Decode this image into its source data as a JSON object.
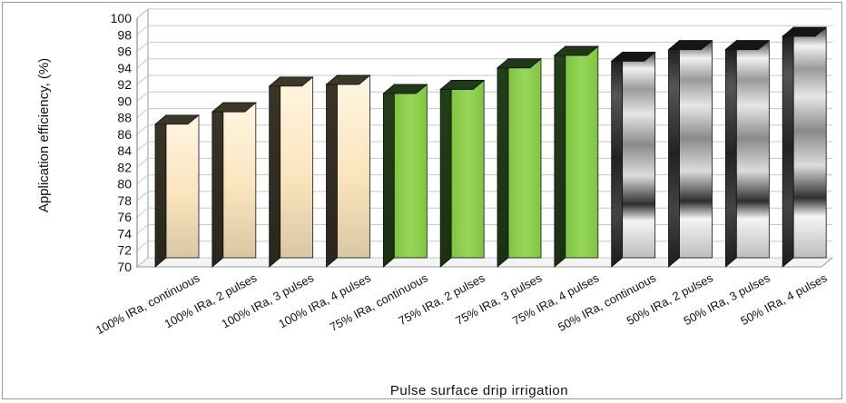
{
  "chart_data": {
    "type": "bar",
    "title": "",
    "xlabel": "Pulse surface drip irrigation",
    "ylabel": "Application efficiency, (%)",
    "ylim": [
      70,
      100
    ],
    "yticks": [
      70,
      72,
      74,
      76,
      78,
      80,
      82,
      84,
      86,
      88,
      90,
      92,
      94,
      96,
      98,
      100
    ],
    "grid": true,
    "categories": [
      "100% IRa, continuous",
      "100% IRa, 2 pulses",
      "100% IRa, 3 pulses",
      "100% IRa, 4 pulses",
      "75% IRa, continuous",
      "75% IRa, 2 pulses",
      "75% IRa, 3 pulses",
      "75% IRa, 4 pulses",
      "50% IRa, continuous",
      "50% IRa, 2 pulses",
      "50% IRa, 3 pulses",
      "50% IRa, 4 pulses"
    ],
    "values": [
      87.2,
      88.7,
      91.8,
      92.0,
      90.9,
      91.4,
      94.0,
      95.5,
      94.8,
      96.2,
      96.2,
      97.8
    ],
    "bar_styles": [
      "cream",
      "cream",
      "cream",
      "cream",
      "green",
      "green",
      "green",
      "green",
      "chrome",
      "chrome",
      "chrome",
      "chrome"
    ],
    "colors": {
      "cream": "#fbe9c6",
      "green": "#8ecf4f",
      "chrome": "#d0d0d0",
      "grid": "#c8c8c8"
    }
  }
}
